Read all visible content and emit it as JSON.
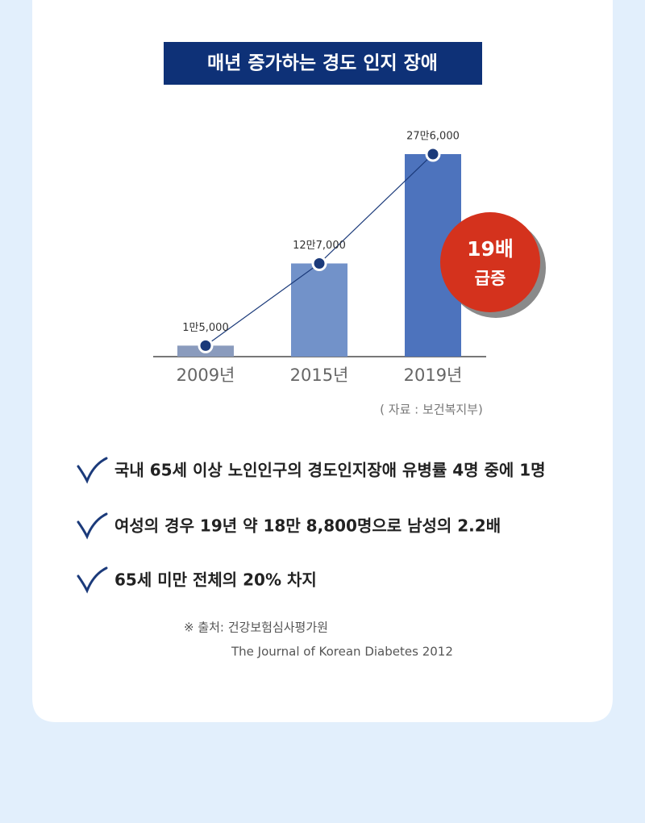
{
  "chart_data": {
    "type": "bar",
    "title": "매년 증가하는 경도 인지 장애",
    "categories": [
      "2009년",
      "2015년",
      "2019년"
    ],
    "values": [
      15000,
      127000,
      276000
    ],
    "value_labels": [
      "1만5,000",
      "12만7,000",
      "27만6,000"
    ],
    "colors": [
      "#8a9bbd",
      "#7292c9",
      "#4d73bd"
    ],
    "line_color": "#1b3a7a",
    "annotations": [
      "19배",
      "급증"
    ],
    "source": "( 자료 : 보건복지부)"
  },
  "bullets": [
    "국내 65세 이상 노인인구의 경도인지장애 유병률 4명 중에 1명",
    "여성의 경우 19년 약 18만 8,800명으로 남성의 2.2배",
    "65세 미만  전체의 20% 차지"
  ],
  "notes": [
    "※ 출처: 건강보험심사평가원",
    "The Journal of Korean Diabetes 2012"
  ]
}
